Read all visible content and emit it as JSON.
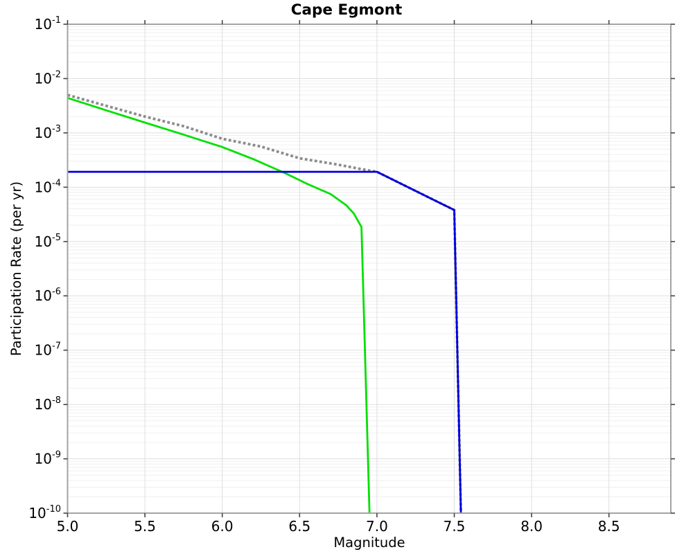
{
  "title": "Cape Egmont",
  "chart_data": {
    "type": "line",
    "title": "Cape Egmont",
    "xlabel": "Magnitude",
    "ylabel": "Participation Rate (per yr)",
    "xlim": [
      5.0,
      8.9
    ],
    "ylim": [
      1e-10,
      0.1
    ],
    "y_scale": "log",
    "grid": true,
    "legend_position": "none",
    "x_ticks": [
      {
        "value": 5.0,
        "label": "5.0"
      },
      {
        "value": 5.5,
        "label": "5.5"
      },
      {
        "value": 6.0,
        "label": "6.0"
      },
      {
        "value": 6.5,
        "label": "6.5"
      },
      {
        "value": 7.0,
        "label": "7.0"
      },
      {
        "value": 7.5,
        "label": "7.5"
      },
      {
        "value": 8.0,
        "label": "8.0"
      },
      {
        "value": 8.5,
        "label": "8.5"
      }
    ],
    "y_tick_exponents": [
      -1,
      -2,
      -3,
      -4,
      -5,
      -6,
      -7,
      -8,
      -9,
      -10
    ],
    "y_tick_base": "10",
    "series": [
      {
        "name": "green-solid-curve",
        "color": "#00e000",
        "line_style": "solid",
        "line_width": 2.8,
        "points": [
          [
            5.0,
            0.0044
          ],
          [
            5.25,
            0.0026
          ],
          [
            5.5,
            0.00155
          ],
          [
            5.75,
            0.00093
          ],
          [
            6.0,
            0.00055
          ],
          [
            6.2,
            0.00033
          ],
          [
            6.4,
            0.000185
          ],
          [
            6.55,
            0.000115
          ],
          [
            6.7,
            7.5e-05
          ],
          [
            6.8,
            4.7e-05
          ],
          [
            6.85,
            3.3e-05
          ],
          [
            6.9,
            1.85e-05
          ],
          [
            6.952,
            1e-10
          ]
        ]
      },
      {
        "name": "gray-dotted-curve",
        "color": "#8c8c8c",
        "line_style": "dotted",
        "line_width": 3.8,
        "points": [
          [
            5.0,
            0.005
          ],
          [
            5.25,
            0.00315
          ],
          [
            5.5,
            0.002
          ],
          [
            5.75,
            0.00133
          ],
          [
            6.0,
            0.00078
          ],
          [
            6.25,
            0.00056
          ],
          [
            6.5,
            0.00034
          ],
          [
            6.75,
            0.00026
          ],
          [
            6.9,
            0.000215
          ],
          [
            7.0,
            0.000192
          ],
          [
            7.5,
            3.8e-05
          ],
          [
            7.543,
            1e-10
          ]
        ]
      },
      {
        "name": "blue-solid-curve",
        "color": "#0000e0",
        "line_style": "solid",
        "line_width": 2.8,
        "points": [
          [
            5.0,
            0.000192
          ],
          [
            7.0,
            0.000192
          ],
          [
            7.5,
            3.8e-05
          ],
          [
            7.543,
            1e-10
          ]
        ]
      }
    ],
    "style": {
      "border_color": "#a3a3a3",
      "major_grid_color": "#dedede",
      "minor_grid_color": "#efefef",
      "tick_color": "#444444"
    }
  }
}
